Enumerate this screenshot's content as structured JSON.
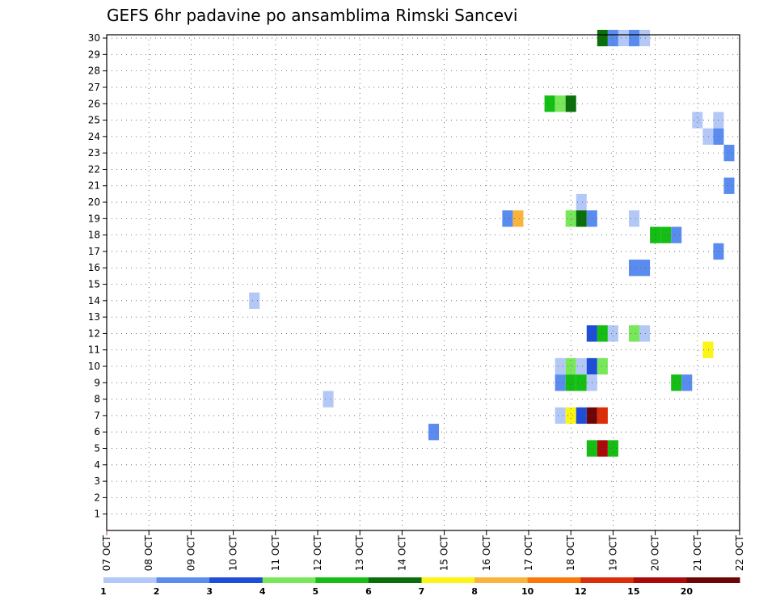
{
  "chart_data": {
    "type": "heatmap",
    "title": "GEFS 6hr padavine po ansamblima Rimski Sancevi",
    "xlabel": "",
    "ylabel": "",
    "x_range": [
      0,
      15
    ],
    "y_range": [
      0,
      30
    ],
    "x_ticks": [
      "07 OCT",
      "08 OCT",
      "09 OCT",
      "10 OCT",
      "11 OCT",
      "12 OCT",
      "13 OCT",
      "14 OCT",
      "15 OCT",
      "16 OCT",
      "17 OCT",
      "18 OCT",
      "19 OCT",
      "20 OCT",
      "21 OCT",
      "22 OCT"
    ],
    "y_ticks": [
      "1",
      "2",
      "3",
      "4",
      "5",
      "6",
      "7",
      "8",
      "9",
      "10",
      "11",
      "12",
      "13",
      "14",
      "15",
      "16",
      "17",
      "18",
      "19",
      "20",
      "21",
      "22",
      "23",
      "24",
      "25",
      "26",
      "27",
      "28",
      "29",
      "30"
    ],
    "grid": true,
    "legend": {
      "position": "bottom",
      "bins": [
        "1",
        "2",
        "3",
        "4",
        "5",
        "6",
        "7",
        "8",
        "10",
        "12",
        "15",
        "20"
      ],
      "colors": [
        "#b4c8f8",
        "#5a8cf0",
        "#1e4ed8",
        "#78e85a",
        "#14be14",
        "#0a6e0a",
        "#faf514",
        "#fab43c",
        "#fa780a",
        "#dc2d0a",
        "#aa0a0a",
        "#6e0505"
      ]
    },
    "colors": {
      "c1": "#b4c8f8",
      "c2": "#5a8cf0",
      "c3": "#1e4ed8",
      "c4": "#78e85a",
      "c5": "#14be14",
      "c6": "#0a6e0a",
      "c7": "#faf514",
      "c8": "#fab43c",
      "c10": "#fa780a",
      "c12": "#dc2d0a",
      "c15": "#aa0a0a",
      "c20": "#6e0505"
    },
    "cells": [
      {
        "m": 30,
        "t": 11.75,
        "c": "#0a6e0a"
      },
      {
        "m": 30,
        "t": 12.0,
        "c": "#5a8cf0"
      },
      {
        "m": 30,
        "t": 12.25,
        "c": "#b4c8f8"
      },
      {
        "m": 30,
        "t": 12.5,
        "c": "#5a8cf0"
      },
      {
        "m": 30,
        "t": 12.75,
        "c": "#b4c8f8"
      },
      {
        "m": 26,
        "t": 10.5,
        "c": "#14be14"
      },
      {
        "m": 26,
        "t": 10.75,
        "c": "#78e85a"
      },
      {
        "m": 26,
        "t": 11.0,
        "c": "#0a6e0a"
      },
      {
        "m": 25,
        "t": 14.0,
        "c": "#b4c8f8"
      },
      {
        "m": 25,
        "t": 14.5,
        "c": "#b4c8f8"
      },
      {
        "m": 24,
        "t": 14.25,
        "c": "#b4c8f8"
      },
      {
        "m": 24,
        "t": 14.5,
        "c": "#5a8cf0"
      },
      {
        "m": 23,
        "t": 14.75,
        "c": "#5a8cf0"
      },
      {
        "m": 21,
        "t": 14.75,
        "c": "#5a8cf0"
      },
      {
        "m": 20,
        "t": 11.25,
        "c": "#b4c8f8"
      },
      {
        "m": 19,
        "t": 9.5,
        "c": "#5a8cf0"
      },
      {
        "m": 19,
        "t": 9.75,
        "c": "#fab43c"
      },
      {
        "m": 19,
        "t": 11.0,
        "c": "#78e85a"
      },
      {
        "m": 19,
        "t": 11.25,
        "c": "#0a6e0a"
      },
      {
        "m": 19,
        "t": 11.5,
        "c": "#5a8cf0"
      },
      {
        "m": 19,
        "t": 12.5,
        "c": "#b4c8f8"
      },
      {
        "m": 18,
        "t": 13.0,
        "c": "#14be14"
      },
      {
        "m": 18,
        "t": 13.25,
        "c": "#14be14"
      },
      {
        "m": 18,
        "t": 13.5,
        "c": "#5a8cf0"
      },
      {
        "m": 17,
        "t": 14.5,
        "c": "#5a8cf0"
      },
      {
        "m": 16,
        "t": 12.5,
        "c": "#5a8cf0"
      },
      {
        "m": 16,
        "t": 12.75,
        "c": "#5a8cf0"
      },
      {
        "m": 14,
        "t": 3.5,
        "c": "#b4c8f8"
      },
      {
        "m": 12,
        "t": 11.5,
        "c": "#1e4ed8"
      },
      {
        "m": 12,
        "t": 11.75,
        "c": "#14be14"
      },
      {
        "m": 12,
        "t": 12.0,
        "c": "#b4c8f8"
      },
      {
        "m": 12,
        "t": 12.5,
        "c": "#78e85a"
      },
      {
        "m": 12,
        "t": 12.75,
        "c": "#b4c8f8"
      },
      {
        "m": 11,
        "t": 14.25,
        "c": "#faf514"
      },
      {
        "m": 10,
        "t": 10.75,
        "c": "#b4c8f8"
      },
      {
        "m": 10,
        "t": 11.0,
        "c": "#78e85a"
      },
      {
        "m": 10,
        "t": 11.25,
        "c": "#b4c8f8"
      },
      {
        "m": 10,
        "t": 11.5,
        "c": "#1e4ed8"
      },
      {
        "m": 10,
        "t": 11.75,
        "c": "#78e85a"
      },
      {
        "m": 9,
        "t": 10.75,
        "c": "#5a8cf0"
      },
      {
        "m": 9,
        "t": 11.0,
        "c": "#14be14"
      },
      {
        "m": 9,
        "t": 11.25,
        "c": "#14be14"
      },
      {
        "m": 9,
        "t": 11.5,
        "c": "#b4c8f8"
      },
      {
        "m": 9,
        "t": 13.5,
        "c": "#14be14"
      },
      {
        "m": 9,
        "t": 13.75,
        "c": "#5a8cf0"
      },
      {
        "m": 8,
        "t": 5.25,
        "c": "#b4c8f8"
      },
      {
        "m": 7,
        "t": 10.75,
        "c": "#b4c8f8"
      },
      {
        "m": 7,
        "t": 11.0,
        "c": "#faf514"
      },
      {
        "m": 7,
        "t": 11.25,
        "c": "#1e4ed8"
      },
      {
        "m": 7,
        "t": 11.5,
        "c": "#6e0505"
      },
      {
        "m": 7,
        "t": 11.75,
        "c": "#dc2d0a"
      },
      {
        "m": 6,
        "t": 7.75,
        "c": "#5a8cf0"
      },
      {
        "m": 5,
        "t": 11.5,
        "c": "#14be14"
      },
      {
        "m": 5,
        "t": 11.75,
        "c": "#aa0a0a"
      },
      {
        "m": 5,
        "t": 12.0,
        "c": "#14be14"
      }
    ]
  }
}
